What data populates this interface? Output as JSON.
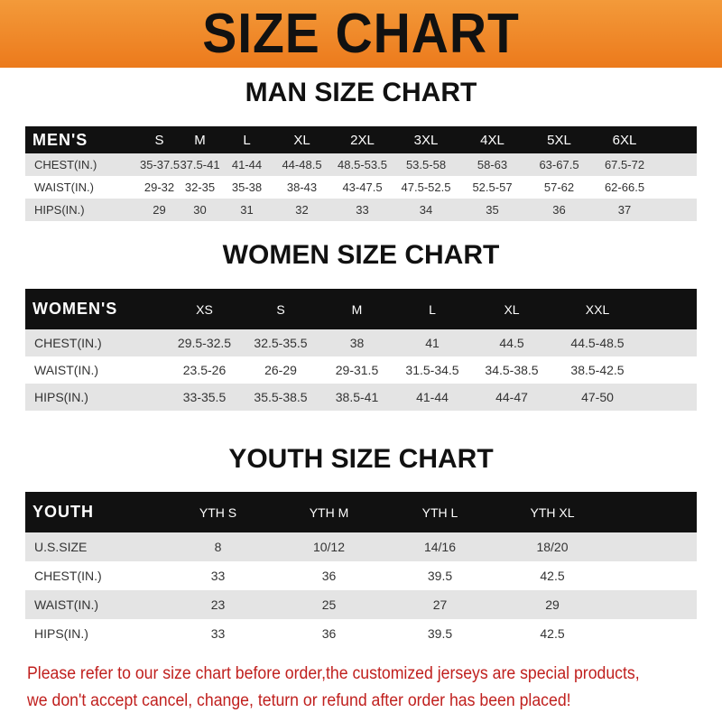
{
  "banner": {
    "title": "SIZE CHART",
    "color": "#ef8a2a"
  },
  "men": {
    "title": "MAN SIZE CHART",
    "header": [
      "MEN'S",
      "S",
      "M",
      "L",
      "XL",
      "2XL",
      "3XL",
      "4XL",
      "5XL",
      "6XL"
    ],
    "rows": [
      [
        "CHEST(IN.)",
        "35-37.5",
        "37.5-41",
        "41-44",
        "44-48.5",
        "48.5-53.5",
        "53.5-58",
        "58-63",
        "63-67.5",
        "67.5-72"
      ],
      [
        "WAIST(IN.)",
        "29-32",
        "32-35",
        "35-38",
        "38-43",
        "43-47.5",
        "47.5-52.5",
        "52.5-57",
        "57-62",
        "62-66.5"
      ],
      [
        "HIPS(IN.)",
        "29",
        "30",
        "31",
        "32",
        "33",
        "34",
        "35",
        "36",
        "37"
      ]
    ]
  },
  "women": {
    "title": "WOMEN SIZE CHART",
    "header": [
      "WOMEN'S",
      "XS",
      "S",
      "M",
      "L",
      "XL",
      "XXL"
    ],
    "rows": [
      [
        "CHEST(IN.)",
        "29.5-32.5",
        "32.5-35.5",
        "38",
        "41",
        "44.5",
        "44.5-48.5"
      ],
      [
        "WAIST(IN.)",
        "23.5-26",
        "26-29",
        "29-31.5",
        "31.5-34.5",
        "34.5-38.5",
        "38.5-42.5"
      ],
      [
        "HIPS(IN.)",
        "33-35.5",
        "35.5-38.5",
        "38.5-41",
        "41-44",
        "44-47",
        "47-50"
      ]
    ]
  },
  "youth": {
    "title": "YOUTH SIZE CHART",
    "header": [
      "YOUTH",
      "YTH S",
      "YTH M",
      "YTH L",
      "YTH XL"
    ],
    "rows": [
      [
        "U.S.SIZE",
        "8",
        "10/12",
        "14/16",
        "18/20"
      ],
      [
        "CHEST(IN.)",
        "33",
        "36",
        "39.5",
        "42.5"
      ],
      [
        "WAIST(IN.)",
        "23",
        "25",
        "27",
        "29"
      ],
      [
        "HIPS(IN.)",
        "33",
        "36",
        "39.5",
        "42.5"
      ]
    ]
  },
  "note": {
    "line1": "Please refer to our size chart before order,the customized jerseys are special products,",
    "line2": "we don't accept cancel, change, teturn or refund after order has been placed!",
    "color": "#c0201e"
  }
}
